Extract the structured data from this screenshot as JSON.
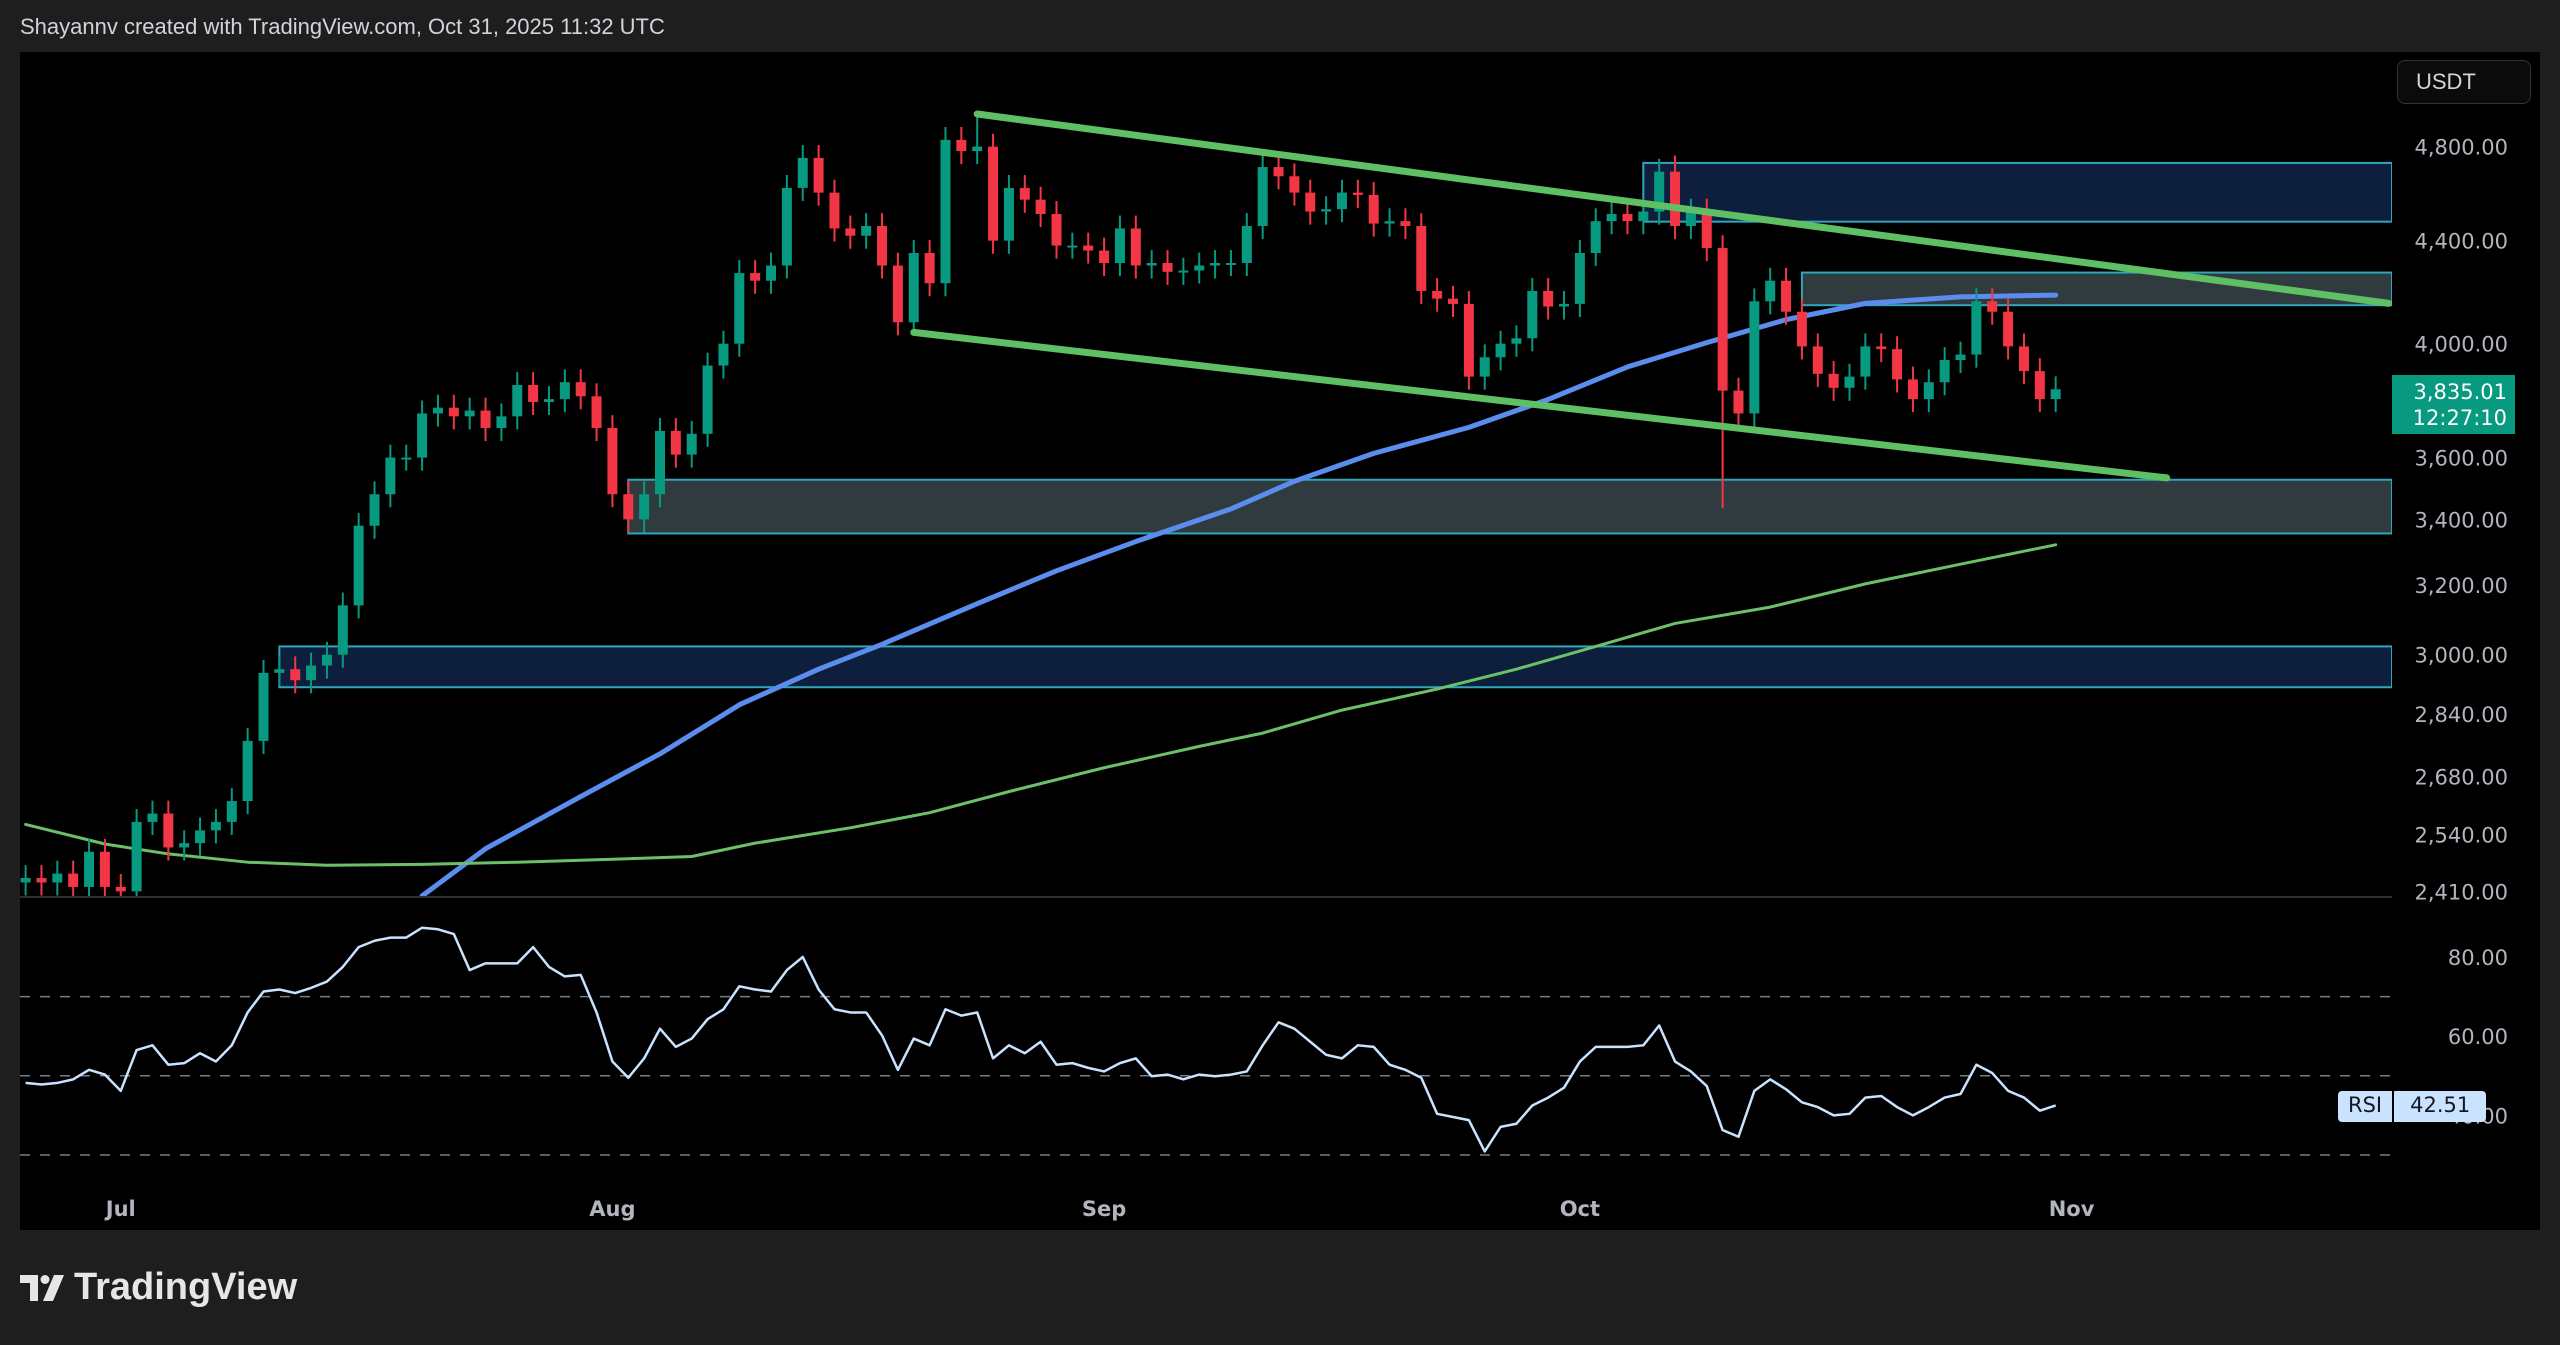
{
  "header": {
    "attribution": "Shayannv created with TradingView.com, Oct 31, 2025 11:32 UTC"
  },
  "footer": {
    "brand": "TradingView"
  },
  "currency": "USDT",
  "last_price": {
    "price": "3,835.01",
    "countdown": "12:27:10",
    "color": "#089981"
  },
  "rsi_badge": {
    "label": "RSI",
    "value": "42.51"
  },
  "colors": {
    "up": "#089981",
    "down": "#f23645",
    "ma_fast": "#5b8def",
    "ma_slow": "#6cc06a",
    "channel": "#5fbf64",
    "zone_blue": "#0d1f3c",
    "zone_grey": "#2f3b3e",
    "zone_border": "#2fa7bb",
    "background": "#000000"
  },
  "chart_data": [
    {
      "type": "candlestick",
      "scale": "log",
      "interval": "1D",
      "ylim": [
        2410,
        4900
      ],
      "y_ticks": [
        "4,800.00",
        "4,400.00",
        "4,000.00",
        "3,600.00",
        "3,400.00",
        "3,200.00",
        "3,000.00",
        "2,840.00",
        "2,680.00",
        "2,540.00",
        "2,410.00"
      ],
      "y_tick_values": [
        4800,
        4400,
        4000,
        3600,
        3400,
        3200,
        3000,
        2840,
        2680,
        2540,
        2410
      ],
      "x_ticks": [
        {
          "label": "Jul",
          "date": "2025-07-01"
        },
        {
          "label": "Aug",
          "date": "2025-08-01"
        },
        {
          "label": "Sep",
          "date": "2025-09-01"
        },
        {
          "label": "Oct",
          "date": "2025-10-01"
        },
        {
          "label": "Nov",
          "date": "2025-11-01"
        }
      ],
      "candles": {
        "dates_from": "2025-06-25",
        "dates_to": "2025-10-31",
        "first_open": 2430,
        "close": [
          2440,
          2430,
          2450,
          2420,
          2500,
          2420,
          2410,
          2570,
          2590,
          2510,
          2520,
          2550,
          2570,
          2620,
          2770,
          2950,
          2960,
          2930,
          2970,
          3000,
          3140,
          3380,
          3480,
          3600,
          3600,
          3750,
          3770,
          3740,
          3760,
          3700,
          3740,
          3850,
          3790,
          3800,
          3860,
          3810,
          3700,
          3480,
          3400,
          3480,
          3690,
          3610,
          3680,
          3920,
          4000,
          4270,
          4240,
          4300,
          4620,
          4750,
          4600,
          4450,
          4420,
          4460,
          4300,
          4080,
          4350,
          4230,
          4830,
          4780,
          4800,
          4400,
          4620,
          4570,
          4510,
          4380,
          4380,
          4360,
          4310,
          4450,
          4300,
          4310,
          4275,
          4280,
          4300,
          4310,
          4310,
          4460,
          4710,
          4670,
          4600,
          4520,
          4530,
          4600,
          4590,
          4470,
          4480,
          4460,
          4200,
          4170,
          4150,
          3880,
          3950,
          4000,
          4020,
          4200,
          4140,
          4150,
          4350,
          4480,
          4510,
          4480,
          4520,
          4690,
          4460,
          4520,
          4370,
          3830,
          3750,
          4160,
          4240,
          4120,
          3990,
          3890,
          3840,
          3880,
          3990,
          3980,
          3870,
          3800,
          3860,
          3940,
          3960,
          4160,
          4120,
          3990,
          3900,
          3800,
          3835
        ],
        "wick_extremes": [
          {
            "date": "2025-08-24",
            "high": 4950
          },
          {
            "date": "2025-10-07",
            "high": 4760
          },
          {
            "date": "2025-10-10",
            "low": 3435
          }
        ]
      },
      "moving_averages": [
        {
          "color": "#5b8def",
          "points": [
            [
              "2025-07-20",
              2400
            ],
            [
              "2025-07-24",
              2507
            ],
            [
              "2025-07-30",
              2631
            ],
            [
              "2025-08-04",
              2737
            ],
            [
              "2025-08-09",
              2864
            ],
            [
              "2025-08-14",
              2960
            ],
            [
              "2025-08-18",
              3029
            ],
            [
              "2025-08-24",
              3145
            ],
            [
              "2025-08-29",
              3242
            ],
            [
              "2025-09-03",
              3331
            ],
            [
              "2025-09-09",
              3433
            ],
            [
              "2025-09-13",
              3522
            ],
            [
              "2025-09-18",
              3614
            ],
            [
              "2025-09-24",
              3702
            ],
            [
              "2025-09-29",
              3799
            ],
            [
              "2025-10-04",
              3915
            ],
            [
              "2025-10-09",
              4004
            ],
            [
              "2025-10-14",
              4090
            ],
            [
              "2025-10-19",
              4152
            ],
            [
              "2025-10-25",
              4177
            ],
            [
              "2025-10-31",
              4184
            ]
          ]
        },
        {
          "color": "#6cc06a",
          "points": [
            [
              "2025-06-25",
              2564
            ],
            [
              "2025-06-30",
              2518
            ],
            [
              "2025-07-04",
              2495
            ],
            [
              "2025-07-09",
              2476
            ],
            [
              "2025-07-14",
              2469
            ],
            [
              "2025-07-20",
              2471
            ],
            [
              "2025-07-26",
              2476
            ],
            [
              "2025-08-02",
              2484
            ],
            [
              "2025-08-06",
              2489
            ],
            [
              "2025-08-10",
              2520
            ],
            [
              "2025-08-16",
              2556
            ],
            [
              "2025-08-21",
              2592
            ],
            [
              "2025-08-26",
              2643
            ],
            [
              "2025-09-01",
              2702
            ],
            [
              "2025-09-07",
              2756
            ],
            [
              "2025-09-11",
              2790
            ],
            [
              "2025-09-16",
              2850
            ],
            [
              "2025-09-22",
              2906
            ],
            [
              "2025-09-27",
              2960
            ],
            [
              "2025-10-02",
              3023
            ],
            [
              "2025-10-07",
              3088
            ],
            [
              "2025-10-13",
              3135
            ],
            [
              "2025-10-19",
              3203
            ],
            [
              "2025-10-25",
              3262
            ],
            [
              "2025-10-31",
              3321
            ]
          ]
        }
      ],
      "zones": [
        {
          "kind": "supply",
          "color": "#0d1f3c",
          "from": "2025-10-05",
          "top": 4728,
          "bottom": 4478
        },
        {
          "kind": "range",
          "color": "#2f3b3e",
          "from": "2025-10-15",
          "top": 4272,
          "bottom": 4145
        },
        {
          "kind": "range",
          "color": "#2f3b3e",
          "from": "2025-08-02",
          "top": 3527,
          "bottom": 3356
        },
        {
          "kind": "demand",
          "color": "#0d1f3c",
          "from": "2025-07-11",
          "top": 3023,
          "bottom": 2911
        }
      ],
      "channel_lines": [
        {
          "from": [
            "2025-08-24",
            4947
          ],
          "to": [
            "2025-11-21",
            4152
          ]
        },
        {
          "from": [
            "2025-08-20",
            4042
          ],
          "to": [
            "2025-11-07",
            3533
          ]
        }
      ]
    },
    {
      "type": "line",
      "name": "RSI",
      "ylim": [
        20,
        90
      ],
      "y_ticks": [
        "80.00",
        "60.00",
        "40.00"
      ],
      "y_tick_values": [
        80,
        60,
        40
      ],
      "bands": [
        70,
        50,
        30
      ],
      "dates_from": "2025-06-25",
      "values": [
        48.2,
        47.8,
        48.2,
        49.1,
        51.5,
        50.3,
        46.2,
        56.5,
        57.7,
        52.8,
        53.2,
        55.7,
        53.6,
        57.7,
        66,
        71.3,
        71.8,
        70.9,
        72.2,
        73.8,
        77.5,
        82.5,
        84.1,
        84.9,
        84.9,
        87.4,
        87,
        85.8,
        76.7,
        78.4,
        78.4,
        78.4,
        82.5,
        77.5,
        75.1,
        75.5,
        66,
        53.6,
        49.5,
        54.4,
        61.9,
        57.3,
        59.4,
        64.3,
        66.8,
        72.6,
        71.8,
        71.3,
        76.7,
        80,
        71.8,
        66.8,
        66,
        66,
        60.2,
        51.5,
        59.4,
        57.7,
        66.8,
        65.2,
        66,
        54.4,
        57.7,
        55.7,
        58.6,
        52.8,
        53.2,
        52,
        51.1,
        53.2,
        54.4,
        49.9,
        50.3,
        49.1,
        50.3,
        49.9,
        50.3,
        51.1,
        57.7,
        63.5,
        61.9,
        58.6,
        55.3,
        54.4,
        57.7,
        57.3,
        52.8,
        51.5,
        49.5,
        40.4,
        39.6,
        38.8,
        30.9,
        37.1,
        37.9,
        42.5,
        44.5,
        47,
        53.6,
        57.3,
        57.3,
        57.3,
        57.7,
        62.7,
        53.6,
        51.1,
        47.4,
        36.3,
        34.6,
        46.2,
        49.1,
        46.6,
        43.3,
        42.1,
        40,
        40.4,
        44.5,
        44.9,
        42.1,
        40,
        42.1,
        44.5,
        45.4,
        52.8,
        50.7,
        46.2,
        44.5,
        41.2,
        42.51
      ]
    }
  ]
}
